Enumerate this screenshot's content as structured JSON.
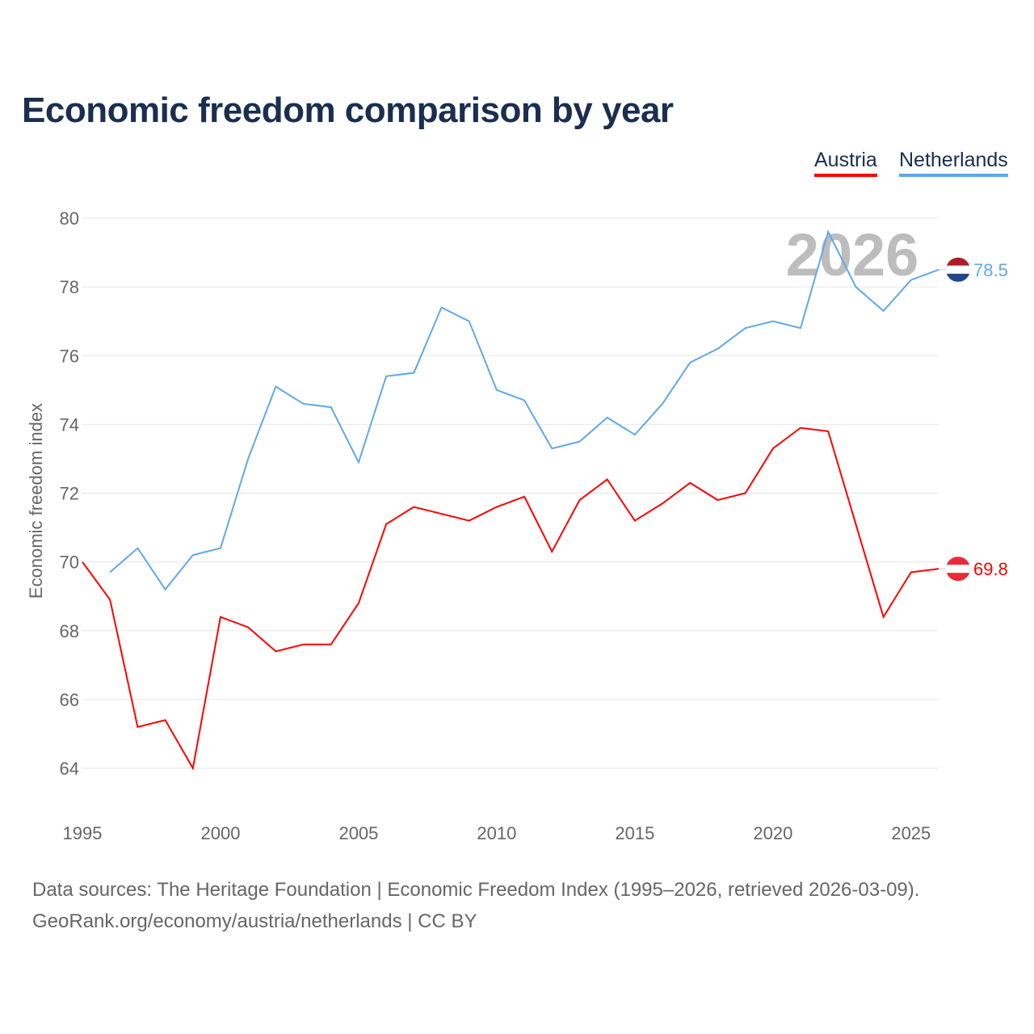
{
  "chart_data": {
    "type": "line",
    "title": "Economic freedom comparison by year",
    "xlabel": "",
    "ylabel": "Economic freedom index",
    "xlim": [
      1995,
      2026
    ],
    "ylim": [
      64,
      80
    ],
    "yticks": [
      64,
      66,
      68,
      70,
      72,
      74,
      76,
      78,
      80
    ],
    "xticks": [
      1995,
      2000,
      2005,
      2010,
      2015,
      2020,
      2025
    ],
    "grid": true,
    "watermark": "2026",
    "legend_placement": "top-right",
    "series": [
      {
        "name": "Austria",
        "color": "#ff0000",
        "end_label": "69.8",
        "x": [
          1995,
          1996,
          1997,
          1998,
          1999,
          2000,
          2001,
          2002,
          2003,
          2004,
          2005,
          2006,
          2007,
          2008,
          2009,
          2010,
          2011,
          2012,
          2013,
          2014,
          2015,
          2016,
          2017,
          2018,
          2019,
          2020,
          2021,
          2022,
          2023,
          2024,
          2025,
          2026
        ],
        "values": [
          70.0,
          68.9,
          65.2,
          65.4,
          64.0,
          68.4,
          68.1,
          67.4,
          67.6,
          67.6,
          68.8,
          71.1,
          71.6,
          71.4,
          71.2,
          71.6,
          71.9,
          70.3,
          71.8,
          72.4,
          71.2,
          71.7,
          72.3,
          71.8,
          72.0,
          73.3,
          73.9,
          73.8,
          71.1,
          68.4,
          69.7,
          69.8
        ]
      },
      {
        "name": "Netherlands",
        "color": "#5fa8ea",
        "end_label": "78.5",
        "x": [
          1996,
          1997,
          1998,
          1999,
          2000,
          2001,
          2002,
          2003,
          2004,
          2005,
          2006,
          2007,
          2008,
          2009,
          2010,
          2011,
          2012,
          2013,
          2014,
          2015,
          2016,
          2017,
          2018,
          2019,
          2020,
          2021,
          2022,
          2023,
          2024,
          2025,
          2026
        ],
        "values": [
          69.7,
          70.4,
          69.2,
          70.2,
          70.4,
          73.0,
          75.1,
          74.6,
          74.5,
          72.9,
          75.4,
          75.5,
          77.4,
          77.0,
          75.0,
          74.7,
          73.3,
          73.5,
          74.2,
          73.7,
          74.6,
          75.8,
          76.2,
          76.8,
          77.0,
          76.8,
          79.6,
          78.0,
          77.3,
          78.2,
          78.5
        ]
      }
    ]
  },
  "footer": {
    "line1": "Data sources: The Heritage Foundation | Economic Freedom Index (1995–2026, retrieved 2026-03-09).",
    "line2": "GeoRank.org/economy/austria/netherlands | CC BY"
  }
}
